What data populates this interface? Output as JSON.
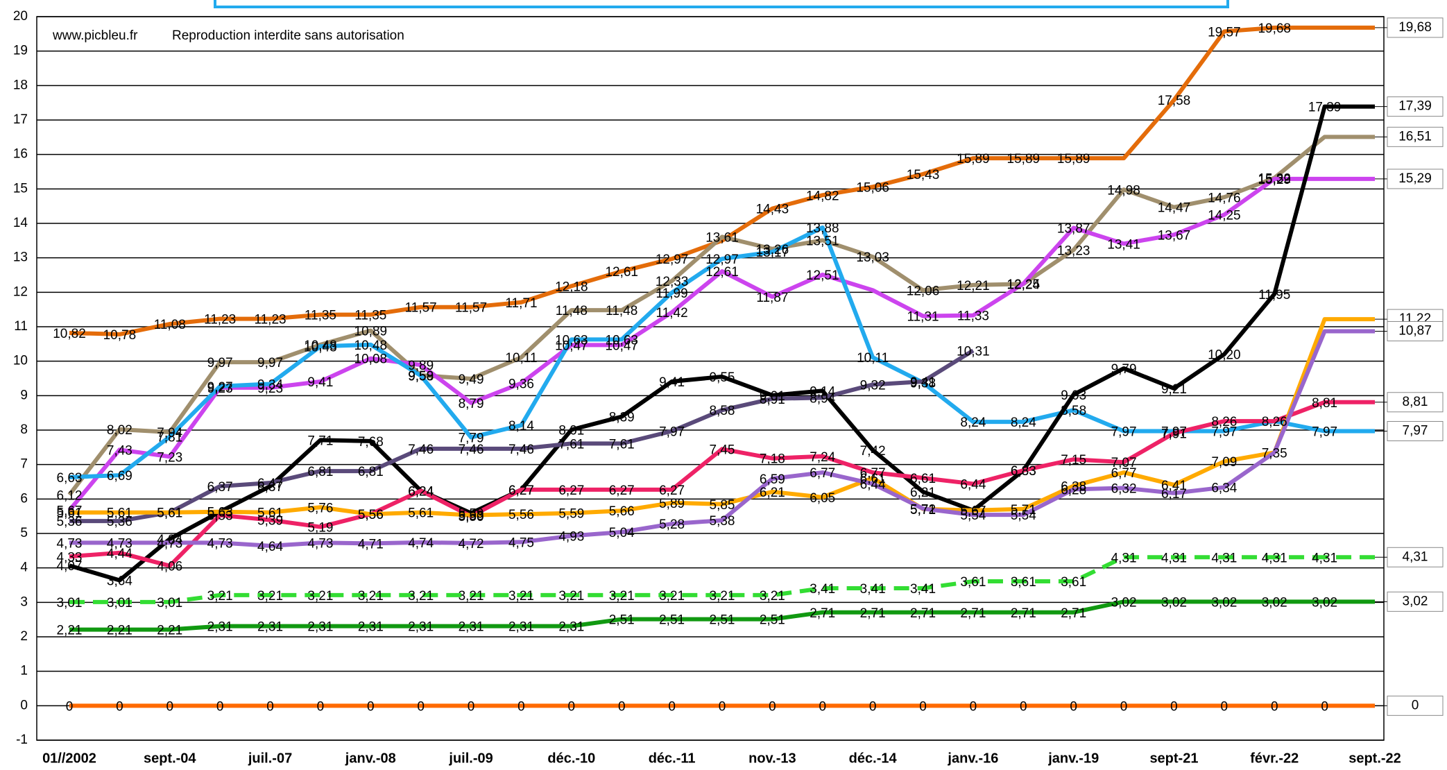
{
  "chart_data": {
    "type": "line",
    "annotations": [
      "www.picbleu.fr",
      "Reproduction interdite sans autorisation"
    ],
    "categories": [
      "01//2002",
      null,
      "sept.-04",
      null,
      "juil.-07",
      null,
      "janv.-08",
      null,
      "juil.-09",
      null,
      "déc.-10",
      null,
      "déc.-11",
      null,
      "nov.-13",
      null,
      "déc.-14",
      null,
      "janv.-16",
      null,
      "janv.-19",
      null,
      "sept-21",
      null,
      "févr.-22",
      null,
      "sept.-22"
    ],
    "ylim": [
      -1,
      20
    ],
    "yticks": [
      -1,
      0,
      1,
      2,
      3,
      4,
      5,
      6,
      7,
      8,
      9,
      10,
      11,
      12,
      13,
      14,
      15,
      16,
      17,
      18,
      19,
      20
    ],
    "grid": true,
    "series": [
      {
        "color": "#e46c0a",
        "values": [
          10.82,
          10.78,
          11.08,
          11.23,
          11.23,
          11.35,
          11.35,
          11.57,
          11.57,
          11.71,
          12.18,
          12.61,
          12.97,
          13.5,
          14.43,
          14.82,
          15.06,
          15.43,
          15.89,
          15.89,
          15.89,
          15.89,
          17.58,
          19.57,
          19.68,
          19.68,
          19.68
        ],
        "value_labels": [
          "10,82",
          "10,78",
          "11,08",
          "11,23",
          "11,23",
          "11,35",
          "11,35",
          "11,57",
          "11,57",
          "11,71",
          "12,18",
          "12,61",
          "12,97",
          null,
          "14,43",
          "14,82",
          "15,06",
          "15,43",
          "15,89",
          "15,89",
          "15,89",
          null,
          "17,58",
          "19,57",
          "19,68",
          null,
          "19,68"
        ]
      },
      {
        "color": "#a08f6d",
        "values": [
          6.12,
          8.02,
          7.94,
          9.97,
          9.97,
          10.48,
          10.89,
          9.59,
          9.49,
          10.11,
          11.48,
          11.48,
          12.33,
          13.61,
          13.26,
          13.51,
          13.03,
          12.06,
          12.21,
          12.24,
          13.23,
          14.98,
          14.47,
          14.76,
          15.32,
          16.51,
          16.51
        ],
        "value_labels": [
          "6,12",
          "8,02",
          "7,94",
          "9,97",
          "9,97",
          "10,48",
          "10,89",
          "9,59",
          "9,49",
          "10,11",
          "11,48",
          "11,48",
          "12,33",
          "13,61",
          "13,26",
          "13,51",
          "13,03",
          "12,06",
          "12,21",
          "12,24",
          "13,23",
          "14,98",
          "14,47",
          "14,76",
          "15,32",
          null,
          "16,51"
        ]
      },
      {
        "color": "#cc44ee",
        "values": [
          5.67,
          7.43,
          7.23,
          9.23,
          9.23,
          9.41,
          10.08,
          9.89,
          8.79,
          9.36,
          10.47,
          10.47,
          11.42,
          12.61,
          11.87,
          12.51,
          12.06,
          11.31,
          11.33,
          12.25,
          13.87,
          13.41,
          13.67,
          14.25,
          15.29,
          15.29,
          15.29
        ],
        "value_labels": [
          "5,67",
          "7,43",
          "7,23",
          "9,23",
          "9,23",
          "9,41",
          "10,08",
          "9,89",
          "8,79",
          "9,36",
          "10,47",
          "10,47",
          "11,42",
          "12,61",
          "11,87",
          "12,51",
          null,
          "11,31",
          "11,33",
          "12,25",
          "13,87",
          "13,41",
          "13,67",
          "14,25",
          "15,29",
          null,
          "15,29"
        ]
      },
      {
        "color": "#22aaee",
        "values": [
          6.63,
          6.69,
          7.81,
          9.27,
          9.34,
          10.43,
          10.48,
          9.58,
          7.79,
          8.14,
          10.63,
          10.63,
          11.99,
          12.97,
          13.17,
          13.88,
          10.11,
          9.38,
          8.24,
          8.24,
          8.58,
          7.97,
          7.97,
          7.97,
          8.26,
          7.97,
          7.97
        ],
        "value_labels": [
          "6,63",
          "6,69",
          "7,81",
          "9,27",
          "9,34",
          "10,43",
          "10,48",
          "9,58",
          "7,79",
          "8,14",
          "10,63",
          "10,63",
          "11,99",
          "12,97",
          "13,17",
          "13,88",
          "10,11",
          "9,38",
          "8,24",
          "8,24",
          "8,58",
          "7,97",
          "7,97",
          "7,97",
          "8,26",
          "7,97",
          "7,97"
        ]
      },
      {
        "color": "#000000",
        "values": [
          4.07,
          3.64,
          4.84,
          5.63,
          6.37,
          7.71,
          7.68,
          6.24,
          5.59,
          6.27,
          8.01,
          8.39,
          9.41,
          9.55,
          9.01,
          9.14,
          7.42,
          6.21,
          5.67,
          6.83,
          9.03,
          9.79,
          9.21,
          10.2,
          11.95,
          17.39,
          17.39
        ],
        "value_labels": [
          "4,07",
          "3,64",
          "4,84",
          "5,63",
          "6,37",
          "7,71",
          "7,68",
          "6,24",
          "5,59",
          "6,27",
          "8,01",
          "8,39",
          "9,41",
          "9,55",
          "9,01",
          "9,14",
          "7,42",
          "6,21",
          "5,67",
          "6,83",
          "9,03",
          "9,79",
          "9,21",
          "10,20",
          "11,95",
          "17,39",
          "17,39"
        ]
      },
      {
        "color": "#5a4a7a",
        "values": [
          5.36,
          5.36,
          5.61,
          6.37,
          6.47,
          6.81,
          6.81,
          7.46,
          7.46,
          7.46,
          7.61,
          7.61,
          7.97,
          8.58,
          8.91,
          8.94,
          9.32,
          9.41,
          10.31,
          null,
          null,
          null,
          null,
          null,
          null,
          null,
          null
        ],
        "value_labels": [
          "5,36",
          "5,36",
          "5,61",
          "6,37",
          "6,47",
          "6,81",
          "6,81",
          "7,46",
          "7,46",
          "7,46",
          "7,61",
          "7,61",
          "7,97",
          "8,58",
          "8,91",
          "8,94",
          "9,32",
          "9,41",
          "10,31",
          null,
          null,
          null,
          null,
          null,
          null,
          null,
          null
        ]
      },
      {
        "color": "#ee2266",
        "values": [
          4.33,
          4.44,
          4.06,
          5.53,
          5.39,
          5.19,
          5.56,
          6.24,
          5.5,
          6.27,
          6.27,
          6.27,
          6.27,
          7.45,
          7.18,
          7.24,
          6.77,
          6.61,
          6.44,
          6.83,
          7.15,
          7.07,
          7.91,
          8.26,
          8.26,
          8.81,
          8.81
        ],
        "value_labels": [
          "4,33",
          "4,44",
          "4,06",
          "5,53",
          "5,39",
          "5,19",
          "5,56",
          "6,24",
          "5,50",
          "6,27",
          "6,27",
          "6,27",
          "6,27",
          "7,45",
          "7,18",
          "7,24",
          "6,77",
          "6,61",
          "6,44",
          "6,83",
          "7,15",
          "7,07",
          "7,91",
          "8,26",
          null,
          "8,81",
          "8,81"
        ]
      },
      {
        "color": "#ffaa00",
        "values": [
          5.61,
          5.61,
          5.61,
          5.63,
          5.61,
          5.76,
          5.56,
          5.61,
          5.53,
          5.56,
          5.59,
          5.66,
          5.89,
          5.85,
          6.21,
          6.05,
          6.61,
          5.71,
          5.67,
          5.71,
          6.38,
          6.77,
          6.41,
          7.09,
          7.35,
          11.22,
          11.22
        ],
        "value_labels": [
          "5,61",
          "5,61",
          "5,61",
          "5,63",
          "5,61",
          "5,76",
          "5,56",
          "5,61",
          "5,53",
          "5,56",
          "5,59",
          "5,66",
          "5,89",
          "5,85",
          "6,21",
          "6,05",
          "6,61",
          "5,71",
          "5,67",
          "5,71",
          "6,38",
          "6,77",
          "6,41",
          "7,09",
          "7,35",
          null,
          "11,22"
        ]
      },
      {
        "color": "#9966cc",
        "values": [
          4.73,
          4.73,
          4.73,
          4.73,
          4.64,
          4.73,
          4.71,
          4.74,
          4.72,
          4.75,
          4.93,
          5.04,
          5.28,
          5.38,
          6.59,
          6.77,
          6.44,
          5.72,
          5.54,
          5.54,
          6.28,
          6.32,
          6.17,
          6.34,
          7.35,
          10.87,
          10.87
        ],
        "value_labels": [
          "4,73",
          "4,73",
          "4,73",
          "4,73",
          "4,64",
          "4,73",
          "4,71",
          "4,74",
          "4,72",
          "4,75",
          "4,93",
          "5,04",
          "5,28",
          "5,38",
          "6,59",
          "6,77",
          "6,44",
          "5,72",
          "5,54",
          "5,54",
          "6,28",
          "6,32",
          "6,17",
          "6,34",
          null,
          null,
          "10,87"
        ]
      },
      {
        "color": "#33dd33",
        "dash": true,
        "values": [
          3.01,
          3.01,
          3.01,
          3.21,
          3.21,
          3.21,
          3.21,
          3.21,
          3.21,
          3.21,
          3.21,
          3.21,
          3.21,
          3.21,
          3.21,
          3.41,
          3.41,
          3.41,
          3.61,
          3.61,
          3.61,
          4.31,
          4.31,
          4.31,
          4.31,
          4.31,
          4.31
        ],
        "value_labels": [
          "3,01",
          "3,01",
          "3,01",
          "3,21",
          "3,21",
          "3,21",
          "3,21",
          "3,21",
          "3,21",
          "3,21",
          "3,21",
          "3,21",
          "3,21",
          "3,21",
          "3,21",
          "3,41",
          "3,41",
          "3,41",
          "3,61",
          "3,61",
          "3,61",
          "4,31",
          "4,31",
          "4,31",
          "4,31",
          "4,31",
          "4,31"
        ]
      },
      {
        "color": "#119911",
        "values": [
          2.21,
          2.21,
          2.21,
          2.31,
          2.31,
          2.31,
          2.31,
          2.31,
          2.31,
          2.31,
          2.31,
          2.51,
          2.51,
          2.51,
          2.51,
          2.71,
          2.71,
          2.71,
          2.71,
          2.71,
          2.71,
          3.02,
          3.02,
          3.02,
          3.02,
          3.02,
          3.02
        ],
        "value_labels": [
          "2,21",
          "2,21",
          "2,21",
          "2,31",
          "2,31",
          "2,31",
          "2,31",
          "2,31",
          "2,31",
          "2,31",
          "2,31",
          "2,51",
          "2,51",
          "2,51",
          "2,51",
          "2,71",
          "2,71",
          "2,71",
          "2,71",
          "2,71",
          "2,71",
          "3,02",
          "3,02",
          "3,02",
          "3,02",
          "3,02",
          "3,02"
        ]
      },
      {
        "color": "#ff6a00",
        "values": [
          0,
          0,
          0,
          0,
          0,
          0,
          0,
          0,
          0,
          0,
          0,
          0,
          0,
          0,
          0,
          0,
          0,
          0,
          0,
          0,
          0,
          0,
          0,
          0,
          0,
          0,
          0
        ]
      }
    ]
  }
}
